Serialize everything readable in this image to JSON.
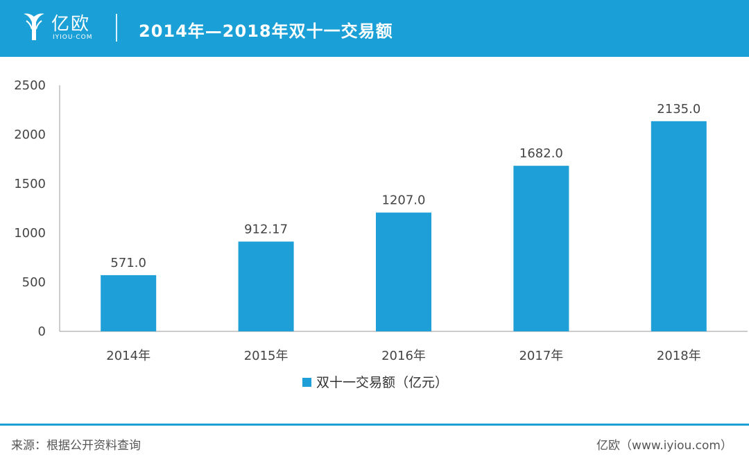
{
  "header": {
    "logo_text": "亿欧",
    "logo_sub": "IYIOU·COM",
    "title": "2014年—2018年双十一交易额"
  },
  "colors": {
    "header_bg": "#1a9fd6",
    "bar": "#1e9fd7",
    "axis": "#999999",
    "text": "#444444"
  },
  "chart_data": {
    "type": "bar",
    "categories": [
      "2014年",
      "2015年",
      "2016年",
      "2017年",
      "2018年"
    ],
    "series": [
      {
        "name": "双十一交易额（亿元）",
        "values": [
          571.0,
          912.17,
          1207.0,
          1682.0,
          2135.0
        ],
        "labels": [
          "571.0",
          "912.17",
          "1207.0",
          "1682.0",
          "2135.0"
        ]
      }
    ],
    "ylim": [
      0,
      2500
    ],
    "yticks": [
      0,
      500,
      1000,
      1500,
      2000,
      2500
    ],
    "grid": false,
    "legend": "bottom"
  },
  "footer": {
    "source": "来源：根据公开资料查询",
    "brand": "亿欧（www.iyiou.com）"
  }
}
